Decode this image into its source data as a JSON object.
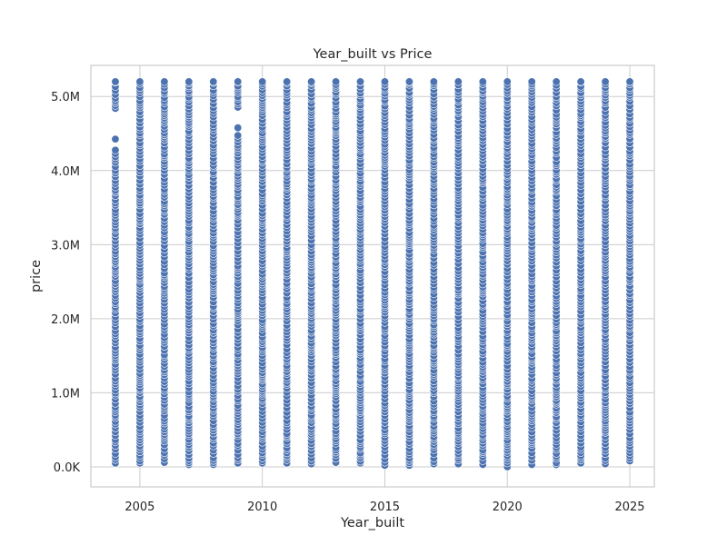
{
  "chart_data": {
    "type": "scatter",
    "title": "Year_built vs Price",
    "xlabel": "Year_built",
    "ylabel": "price",
    "xlim": [
      2003,
      2026
    ],
    "ylim": [
      -270000,
      5420000
    ],
    "x_ticks": [
      2005,
      2010,
      2015,
      2020,
      2025
    ],
    "x_tick_labels": [
      "2005",
      "2010",
      "2015",
      "2020",
      "2025"
    ],
    "y_ticks": [
      0,
      1000000,
      2000000,
      3000000,
      4000000,
      5000000
    ],
    "y_tick_labels": [
      "0.0K",
      "1.0M",
      "2.0M",
      "3.0M",
      "4.0M",
      "5.0M"
    ],
    "grid": true,
    "legend": "none",
    "point_color": "#4c72b0",
    "point_edge_color": "#ffffff",
    "columns": [
      {
        "x": 2004,
        "min": 50000,
        "max": 5200000,
        "upper_gap": [
          4300000,
          4800000
        ]
      },
      {
        "x": 2005,
        "min": 50000,
        "max": 5200000
      },
      {
        "x": 2006,
        "min": 60000,
        "max": 5200000
      },
      {
        "x": 2007,
        "min": 30000,
        "max": 5200000
      },
      {
        "x": 2008,
        "min": 30000,
        "max": 5200000
      },
      {
        "x": 2009,
        "min": 50000,
        "max": 5200000,
        "upper_gap": [
          4500000,
          4850000
        ]
      },
      {
        "x": 2010,
        "min": 50000,
        "max": 5200000
      },
      {
        "x": 2011,
        "min": 50000,
        "max": 5200000
      },
      {
        "x": 2012,
        "min": 40000,
        "max": 5200000
      },
      {
        "x": 2013,
        "min": 60000,
        "max": 5200000
      },
      {
        "x": 2014,
        "min": 50000,
        "max": 5200000
      },
      {
        "x": 2015,
        "min": 20000,
        "max": 5200000
      },
      {
        "x": 2016,
        "min": 20000,
        "max": 5200000
      },
      {
        "x": 2017,
        "min": 40000,
        "max": 5200000
      },
      {
        "x": 2018,
        "min": 40000,
        "max": 5200000
      },
      {
        "x": 2019,
        "min": 30000,
        "max": 5200000
      },
      {
        "x": 2020,
        "min": 0,
        "max": 5200000
      },
      {
        "x": 2021,
        "min": 30000,
        "max": 5200000
      },
      {
        "x": 2022,
        "min": 30000,
        "max": 5200000
      },
      {
        "x": 2023,
        "min": 50000,
        "max": 5200000
      },
      {
        "x": 2024,
        "min": 40000,
        "max": 5200000
      },
      {
        "x": 2025,
        "min": 80000,
        "max": 5200000
      }
    ]
  }
}
